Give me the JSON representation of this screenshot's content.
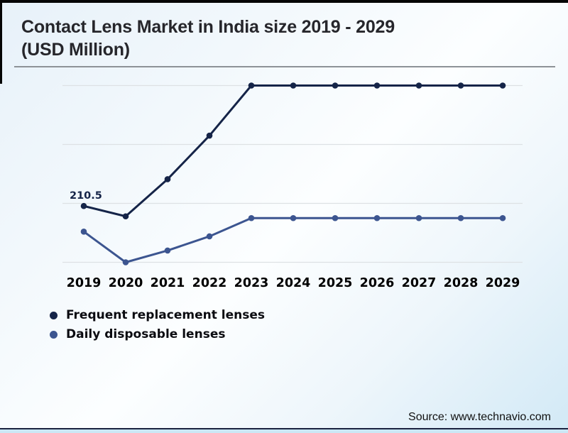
{
  "page": {
    "title": "Contact Lens Market in India size 2019 - 2029\n(USD Million)",
    "source": "Source: www.technavio.com"
  },
  "chart_data": {
    "type": "line",
    "title": "Contact Lens Market in India size 2019 - 2029 (USD Million)",
    "xlabel": "",
    "ylabel": "USD Million",
    "categories": [
      "2019",
      "2020",
      "2021",
      "2022",
      "2023",
      "2024",
      "2025",
      "2026",
      "2027",
      "2028",
      "2029"
    ],
    "series": [
      {
        "name": "Frequent replacement lenses",
        "color": "#152448",
        "values": [
          210.5,
          193,
          256,
          330,
          415,
          415,
          415,
          415,
          415,
          415,
          415
        ]
      },
      {
        "name": "Daily disposable lenses",
        "color": "#3c5590",
        "values": [
          167,
          115,
          135,
          159,
          190,
          190,
          190,
          190,
          190,
          190,
          190
        ]
      }
    ],
    "annotations": [
      {
        "text": "210.5",
        "series": 0,
        "category_index": 0
      }
    ],
    "gridline_values": [
      415,
      315,
      215,
      115
    ],
    "ylim": [
      90,
      440
    ],
    "grid": "horizontal",
    "legend_position": "bottom-left",
    "gridline_color": "#dde1e4",
    "axis_label_color": "#000000",
    "annotation_color": "#152448"
  }
}
